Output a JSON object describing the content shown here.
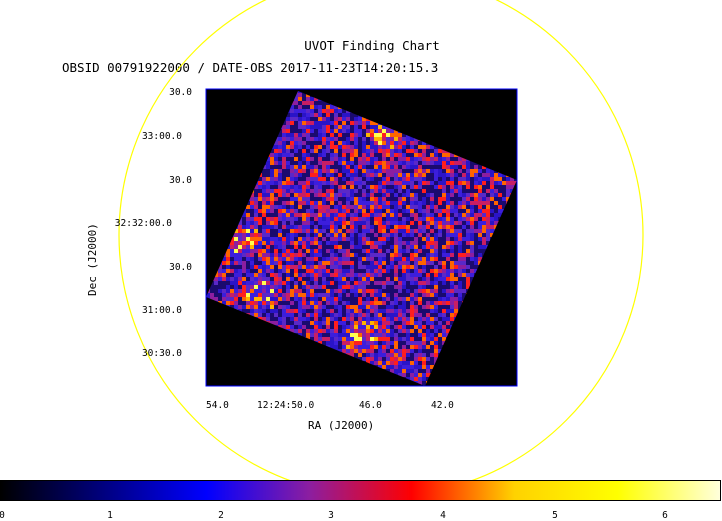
{
  "chart_data": {
    "type": "heatmap",
    "title": "UVOT Finding Chart",
    "subtitle": "OBSID 00791922000 / DATE-OBS 2017-11-23T14:20:15.3",
    "xlabel": "RA (J2000)",
    "ylabel": "Dec (J2000)",
    "x_ticks": [
      "54.0",
      "12:24:50.0",
      "46.0",
      "42.0"
    ],
    "y_ticks": [
      "30.0",
      "33:00.0",
      "30.0",
      "32:32:00.0",
      "30.0",
      "31:00.0",
      "30:30.0"
    ],
    "colorbar": {
      "ticks": [
        "0",
        "1",
        "2",
        "3",
        "4",
        "5",
        "6"
      ],
      "colors": [
        "#000000",
        "#00007f",
        "#0000ff",
        "#8c1ea0",
        "#ff0000",
        "#ffd200",
        "#ffff00",
        "#ffffdc"
      ]
    },
    "background_color": "#000000",
    "frame_color": "#0000ff",
    "circle_color": "#ffff00"
  }
}
